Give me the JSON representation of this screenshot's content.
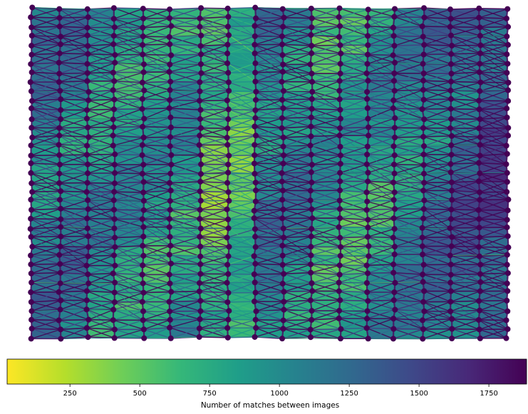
{
  "colorbar": {
    "label": "Number of matches between images",
    "min": 25,
    "max": 1885,
    "ticks": [
      250,
      500,
      750,
      1000,
      1250,
      1500,
      1750
    ],
    "tick_labels": [
      "250",
      "500",
      "750",
      "1000",
      "1250",
      "1500",
      "1750"
    ],
    "colormap": "viridis_r",
    "colormap_stops": [
      "#fde725",
      "#b5de2b",
      "#6ece58",
      "#35b779",
      "#1f9e89",
      "#26828e",
      "#31688e",
      "#3e4989",
      "#482878",
      "#440154"
    ]
  },
  "graph": {
    "node_color": "#440154",
    "columns": 18,
    "rows": 37,
    "strip_match_levels": [
      0.55,
      0.55,
      0.5,
      0.45,
      0.45,
      0.4,
      0.45,
      0.1,
      0.5,
      0.55,
      0.45,
      0.35,
      0.4,
      0.45,
      0.55,
      0.6,
      0.7,
      0.75
    ]
  }
}
